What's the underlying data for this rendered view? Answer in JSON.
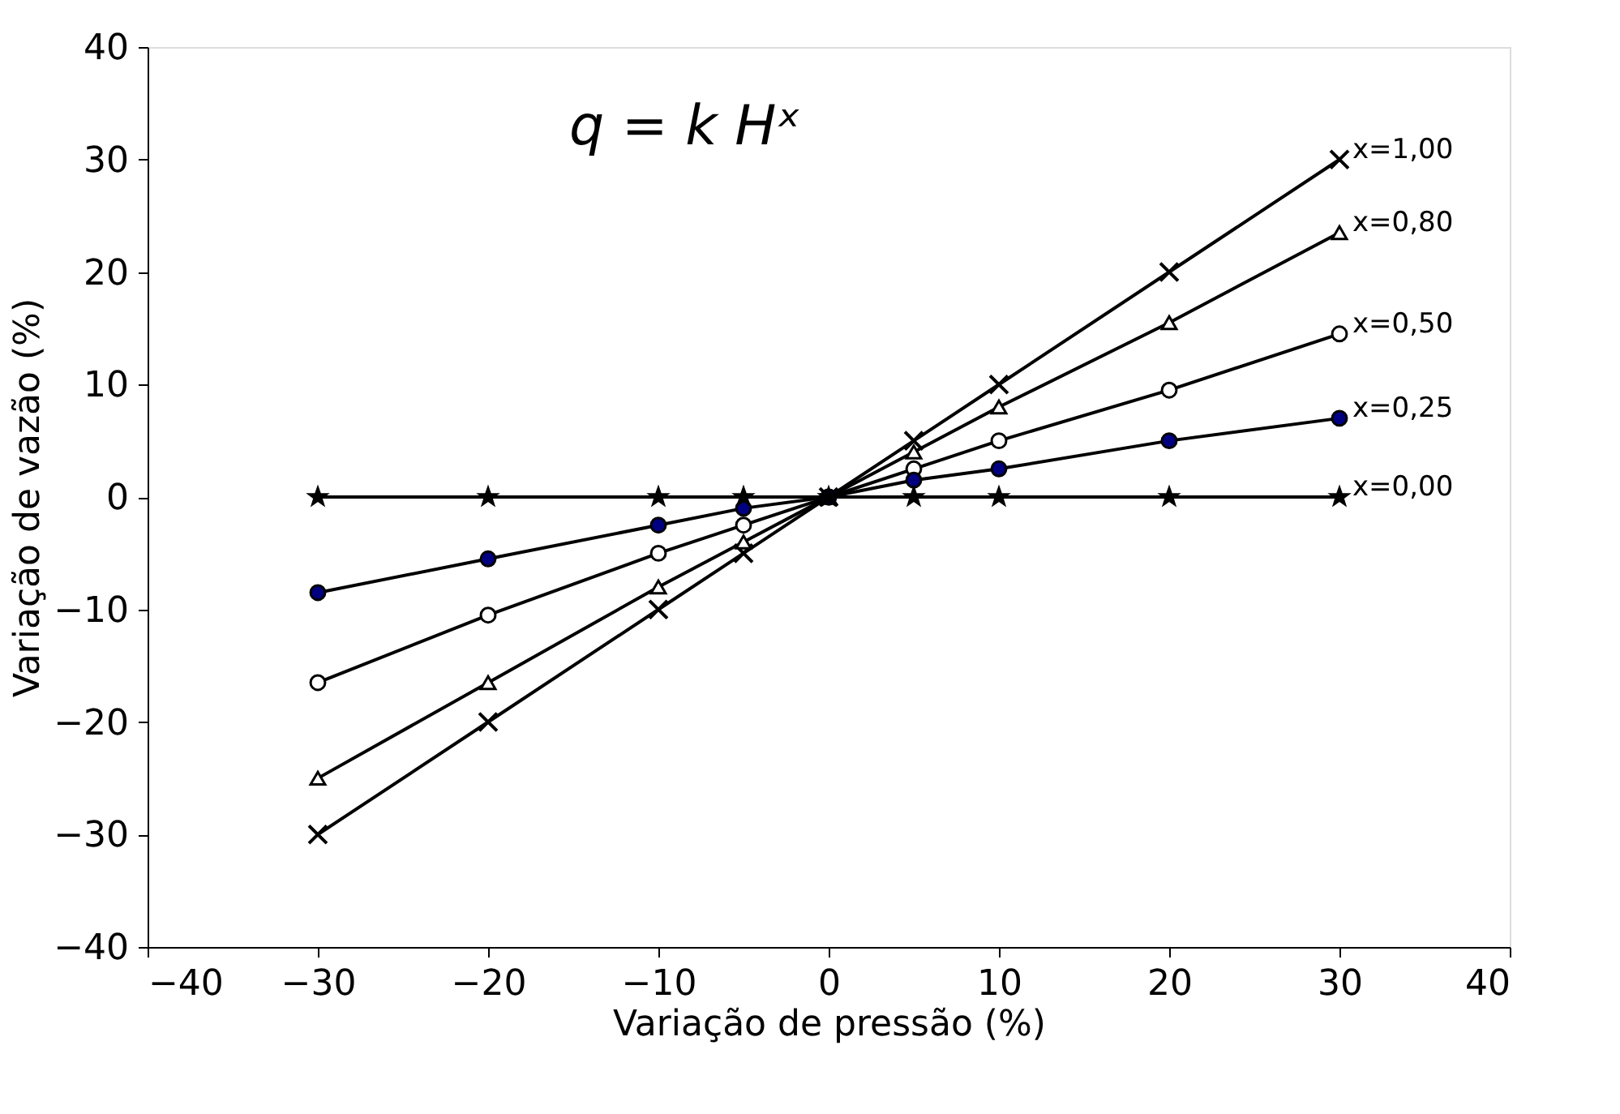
{
  "chart_data": {
    "type": "line",
    "xlabel": "Variação de pressão (%)",
    "ylabel": "Variação de vazão (%)",
    "x": [
      -30,
      -20,
      -10,
      -5,
      0,
      5,
      10,
      20,
      30
    ],
    "series": [
      {
        "name": "x=1,00",
        "color": "#000000",
        "marker": "cross",
        "values": [
          -30,
          -20,
          -10,
          -5,
          0,
          5,
          10,
          20,
          30
        ]
      },
      {
        "name": "x=0,80",
        "color": "#ffffff",
        "marker": "triangle",
        "values": [
          -25,
          -16.5,
          -8,
          -4,
          0,
          4,
          8,
          15.5,
          23.5
        ]
      },
      {
        "name": "x=0,50",
        "color": "#ffffff",
        "marker": "circle",
        "values": [
          -16.5,
          -10.5,
          -5,
          -2.5,
          0,
          2.5,
          5,
          9.5,
          14.5
        ]
      },
      {
        "name": "x=0,25",
        "color": "#000080",
        "marker": "circle",
        "values": [
          -8.5,
          -5.5,
          -2.5,
          -1,
          0,
          1.5,
          2.5,
          5,
          7
        ]
      },
      {
        "name": "x=0,00",
        "color": "#000000",
        "marker": "star",
        "values": [
          0,
          0,
          0,
          0,
          0,
          0,
          0,
          0,
          0
        ]
      }
    ],
    "annotations": [
      "q = k Hˣ"
    ],
    "xlim": [
      -40,
      40
    ],
    "xticks": [
      -40,
      -30,
      -20,
      -10,
      0,
      10,
      20,
      30,
      40
    ],
    "ylim": [
      -40,
      40
    ],
    "yticks": [
      -40,
      -30,
      -20,
      -10,
      0,
      10,
      20,
      30,
      40
    ],
    "grid": false,
    "line_style": "solid"
  }
}
